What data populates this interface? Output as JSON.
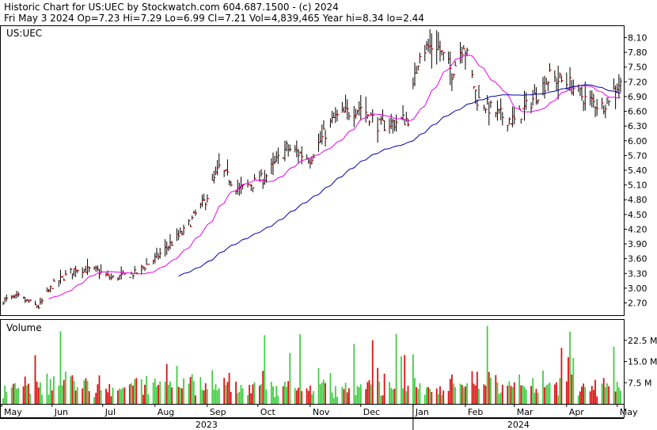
{
  "header": {
    "line1": "Historic Chart for US:UEC by Stockwatch.com 604.687.1500 - (c) 2024",
    "line2": "Fri May  3 2024  Op=7.23  Hi=7.29  Lo=6.99  Cl=7.21  Vol=4,839,465  Year hi=8.34  lo=2.44"
  },
  "chart_data": [
    {
      "type": "ohlc",
      "title": "US:UEC",
      "y_ticks": [
        "8.10",
        "7.80",
        "7.50",
        "7.20",
        "6.90",
        "6.60",
        "6.30",
        "6.00",
        "5.70",
        "5.40",
        "5.10",
        "4.80",
        "4.50",
        "4.20",
        "3.90",
        "3.60",
        "3.30",
        "3.00",
        "2.70"
      ],
      "ylim": [
        2.45,
        8.35
      ],
      "x_months": [
        "May",
        "Jun",
        "Jul",
        "Aug",
        "Sep",
        "Oct",
        "Nov",
        "Dec",
        "Jan",
        "Feb",
        "Mar",
        "Apr",
        "May"
      ],
      "x_years": [
        "2023",
        "2024"
      ],
      "date_range": [
        "2023-05-03",
        "2024-05-03"
      ],
      "series_keypoints": [
        {
          "date": "2023-05-03",
          "close": 2.75
        },
        {
          "date": "2023-05-12",
          "close": 2.82
        },
        {
          "date": "2023-05-24",
          "close": 2.62
        },
        {
          "date": "2023-06-01",
          "close": 3.05
        },
        {
          "date": "2023-06-15",
          "close": 3.4
        },
        {
          "date": "2023-06-28",
          "close": 3.35
        },
        {
          "date": "2023-07-06",
          "close": 3.2
        },
        {
          "date": "2023-07-20",
          "close": 3.3
        },
        {
          "date": "2023-08-01",
          "close": 3.6
        },
        {
          "date": "2023-08-18",
          "close": 4.15
        },
        {
          "date": "2023-08-31",
          "close": 4.8
        },
        {
          "date": "2023-09-08",
          "close": 5.45
        },
        {
          "date": "2023-09-20",
          "close": 5.0
        },
        {
          "date": "2023-10-05",
          "close": 5.25
        },
        {
          "date": "2023-10-18",
          "close": 5.85
        },
        {
          "date": "2023-11-01",
          "close": 5.65
        },
        {
          "date": "2023-11-15",
          "close": 6.45
        },
        {
          "date": "2023-12-01",
          "close": 6.7
        },
        {
          "date": "2023-12-12",
          "close": 6.3
        },
        {
          "date": "2023-12-29",
          "close": 6.45
        },
        {
          "date": "2024-01-05",
          "close": 7.85
        },
        {
          "date": "2024-01-15",
          "close": 7.95
        },
        {
          "date": "2024-01-24",
          "close": 7.4
        },
        {
          "date": "2024-01-31",
          "close": 8.0
        },
        {
          "date": "2024-02-08",
          "close": 6.85
        },
        {
          "date": "2024-02-20",
          "close": 6.55
        },
        {
          "date": "2024-03-01",
          "close": 6.4
        },
        {
          "date": "2024-03-12",
          "close": 6.85
        },
        {
          "date": "2024-03-22",
          "close": 7.3
        },
        {
          "date": "2024-04-03",
          "close": 7.15
        },
        {
          "date": "2024-04-12",
          "close": 6.85
        },
        {
          "date": "2024-04-22",
          "close": 6.7
        },
        {
          "date": "2024-05-03",
          "close": 7.21
        }
      ],
      "moving_averages": [
        {
          "name": "short-ma",
          "color": "#ee00ee"
        },
        {
          "name": "long-ma",
          "color": "#0000aa"
        }
      ]
    },
    {
      "type": "bar",
      "title": "Volume",
      "y_ticks": [
        "22.5 M",
        "15.0 M",
        "7.5 M"
      ],
      "ylim": [
        0,
        30
      ],
      "unit": "M",
      "up_color": "#44cc44",
      "down_color": "#dd1111"
    }
  ],
  "colors": {
    "ohlc_bar": "#000000",
    "ohlc_close_mark": "#cc0000",
    "frame": "#000000",
    "grid": "#e8e8e8"
  }
}
